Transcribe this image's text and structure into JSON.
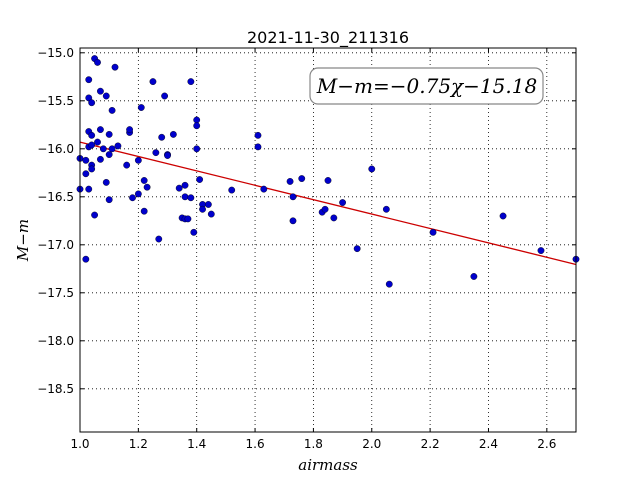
{
  "chart_data": {
    "type": "scatter",
    "title": "2021-11-30_211316",
    "xlabel": "airmass",
    "ylabel": "M−m",
    "annotation": "M−m=−0.75χ−15.18",
    "xlim": [
      1.0,
      2.7
    ],
    "ylim": [
      -18.95,
      -14.95
    ],
    "grid": true,
    "x_ticks": [
      1.0,
      1.2,
      1.4,
      1.6,
      1.8,
      2.0,
      2.2,
      2.4,
      2.6
    ],
    "x_tick_labels": [
      "1.0",
      "1.2",
      "1.4",
      "1.6",
      "1.8",
      "2.0",
      "2.2",
      "2.4",
      "2.6"
    ],
    "y_ticks": [
      -15.0,
      -15.5,
      -16.0,
      -16.5,
      -17.0,
      -17.5,
      -18.0,
      -18.5
    ],
    "y_tick_labels": [
      "−15.0",
      "−15.5",
      "−16.0",
      "−16.5",
      "−17.0",
      "−17.5",
      "−18.0",
      "−18.5"
    ],
    "fit": {
      "slope": -0.75,
      "intercept": -15.18,
      "color": "#cc0000"
    },
    "point_color": "#0000cc",
    "points": [
      [
        1.0,
        -16.1
      ],
      [
        1.0,
        -16.42
      ],
      [
        1.02,
        -16.12
      ],
      [
        1.02,
        -16.26
      ],
      [
        1.02,
        -17.15
      ],
      [
        1.03,
        -15.28
      ],
      [
        1.03,
        -15.47
      ],
      [
        1.04,
        -15.52
      ],
      [
        1.03,
        -15.82
      ],
      [
        1.04,
        -15.86
      ],
      [
        1.03,
        -15.98
      ],
      [
        1.04,
        -15.96
      ],
      [
        1.04,
        -16.17
      ],
      [
        1.04,
        -16.21
      ],
      [
        1.03,
        -16.42
      ],
      [
        1.05,
        -16.69
      ],
      [
        1.05,
        -15.06
      ],
      [
        1.06,
        -15.1
      ],
      [
        1.06,
        -15.93
      ],
      [
        1.07,
        -15.4
      ],
      [
        1.07,
        -15.8
      ],
      [
        1.07,
        -16.11
      ],
      [
        1.08,
        -16.0
      ],
      [
        1.09,
        -15.45
      ],
      [
        1.09,
        -16.35
      ],
      [
        1.1,
        -15.85
      ],
      [
        1.1,
        -16.06
      ],
      [
        1.1,
        -16.53
      ],
      [
        1.11,
        -16.0
      ],
      [
        1.11,
        -15.6
      ],
      [
        1.12,
        -15.15
      ],
      [
        1.13,
        -15.97
      ],
      [
        1.16,
        -16.17
      ],
      [
        1.17,
        -15.83
      ],
      [
        1.17,
        -15.8
      ],
      [
        1.18,
        -16.51
      ],
      [
        1.2,
        -16.47
      ],
      [
        1.2,
        -16.12
      ],
      [
        1.21,
        -15.57
      ],
      [
        1.22,
        -16.33
      ],
      [
        1.22,
        -16.65
      ],
      [
        1.23,
        -16.4
      ],
      [
        1.25,
        -15.3
      ],
      [
        1.26,
        -16.04
      ],
      [
        1.27,
        -16.94
      ],
      [
        1.28,
        -15.88
      ],
      [
        1.29,
        -15.45
      ],
      [
        1.3,
        -16.06
      ],
      [
        1.3,
        -16.07
      ],
      [
        1.32,
        -15.85
      ],
      [
        1.34,
        -16.41
      ],
      [
        1.35,
        -16.72
      ],
      [
        1.36,
        -16.73
      ],
      [
        1.36,
        -16.38
      ],
      [
        1.36,
        -16.5
      ],
      [
        1.37,
        -16.73
      ],
      [
        1.38,
        -15.3
      ],
      [
        1.38,
        -16.51
      ],
      [
        1.39,
        -16.87
      ],
      [
        1.4,
        -15.7
      ],
      [
        1.4,
        -15.76
      ],
      [
        1.4,
        -16.0
      ],
      [
        1.41,
        -16.32
      ],
      [
        1.42,
        -16.58
      ],
      [
        1.42,
        -16.63
      ],
      [
        1.44,
        -16.58
      ],
      [
        1.45,
        -16.68
      ],
      [
        1.52,
        -16.43
      ],
      [
        1.61,
        -15.86
      ],
      [
        1.61,
        -15.98
      ],
      [
        1.63,
        -16.42
      ],
      [
        1.72,
        -16.34
      ],
      [
        1.73,
        -16.5
      ],
      [
        1.73,
        -16.75
      ],
      [
        1.76,
        -16.31
      ],
      [
        1.83,
        -16.66
      ],
      [
        1.84,
        -16.63
      ],
      [
        1.85,
        -16.33
      ],
      [
        1.87,
        -16.72
      ],
      [
        1.9,
        -16.56
      ],
      [
        1.95,
        -17.04
      ],
      [
        2.0,
        -16.21
      ],
      [
        2.05,
        -16.63
      ],
      [
        2.06,
        -17.41
      ],
      [
        2.21,
        -16.87
      ],
      [
        2.35,
        -17.33
      ],
      [
        2.45,
        -16.7
      ],
      [
        2.58,
        -17.06
      ],
      [
        2.7,
        -17.15
      ]
    ]
  }
}
